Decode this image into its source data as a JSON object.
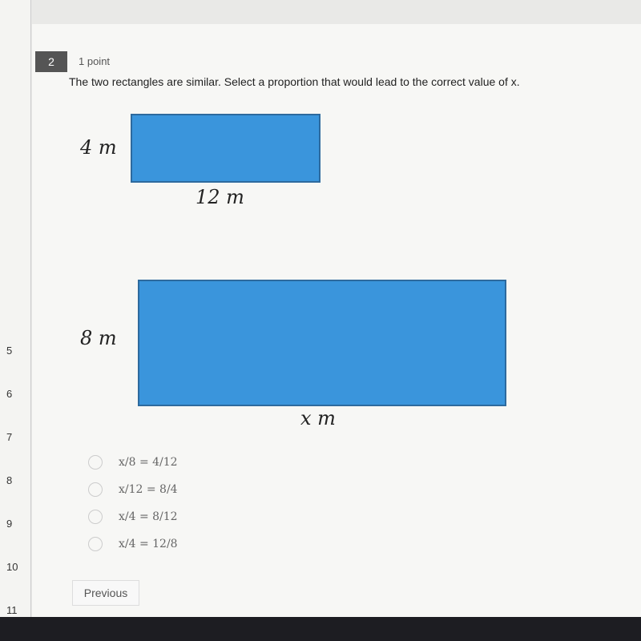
{
  "question": {
    "number": "2",
    "points": "1 point",
    "text": "The two rectangles are similar. Select a proportion that would lead to the correct value of x."
  },
  "small_rect": {
    "height_label": "4 m",
    "width_label": "12 m"
  },
  "large_rect": {
    "height_label": "8 m",
    "width_label": "x m"
  },
  "options": [
    "x/8 = 4/12",
    "x/12 = 8/4",
    "x/4 = 8/12",
    "x/4 = 12/8"
  ],
  "sidebar": [
    "5",
    "6",
    "7",
    "8",
    "9",
    "10",
    "11"
  ],
  "button": "Previous"
}
